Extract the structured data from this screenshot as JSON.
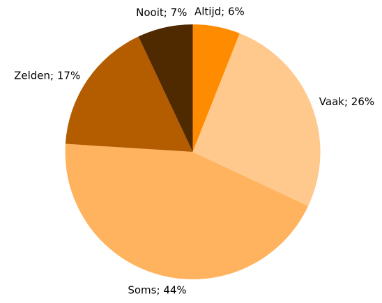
{
  "chart_data": {
    "type": "pie",
    "categories": [
      "Altijd",
      "Vaak",
      "Soms",
      "Zelden",
      "Nooit"
    ],
    "values": [
      6,
      26,
      44,
      17,
      7
    ],
    "value_labels": [
      "; 6%",
      "; 26%",
      "; 44%",
      "; 17%",
      "; 7%"
    ],
    "colors": [
      "#ff8c00",
      "#ffc88c",
      "#ffb35f",
      "#b35c00",
      "#4f2a00"
    ]
  }
}
